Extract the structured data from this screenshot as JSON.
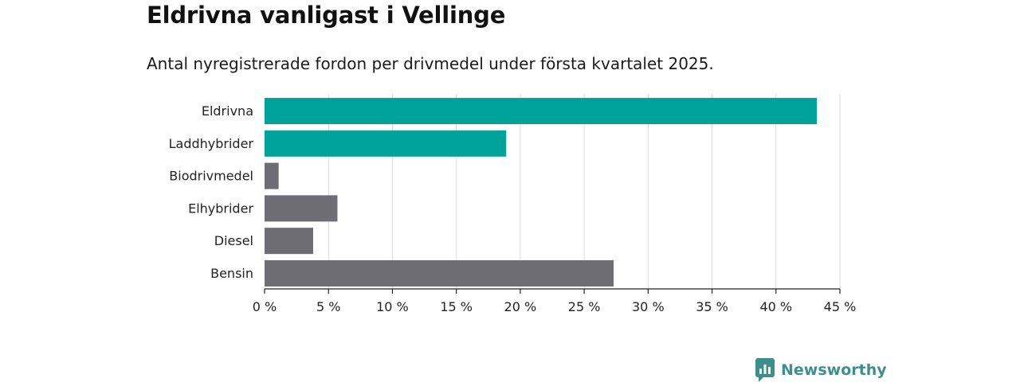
{
  "title": "Eldrivna vanligast i Vellinge",
  "subtitle": "Antal nyregistrerade fordon per drivmedel under första kvartalet 2025.",
  "brand": {
    "name": "Newsworthy",
    "color": "#3d8f8c"
  },
  "chart_data": {
    "type": "bar",
    "orientation": "horizontal",
    "categories": [
      "Eldrivna",
      "Laddhybrider",
      "Biodrivmedel",
      "Elhybrider",
      "Diesel",
      "Bensin"
    ],
    "values": [
      43.2,
      18.9,
      1.1,
      5.7,
      3.8,
      27.3
    ],
    "colors": [
      "#00a39a",
      "#00a39a",
      "#6e6d73",
      "#6e6d73",
      "#6e6d73",
      "#6e6d73"
    ],
    "xlim": [
      0,
      45
    ],
    "xticks": [
      0,
      5,
      10,
      15,
      20,
      25,
      30,
      35,
      40,
      45
    ],
    "xtick_labels": [
      "0 %",
      "5 %",
      "10 %",
      "15 %",
      "20 %",
      "25 %",
      "30 %",
      "35 %",
      "40 %",
      "45 %"
    ],
    "grid": "vertical"
  }
}
